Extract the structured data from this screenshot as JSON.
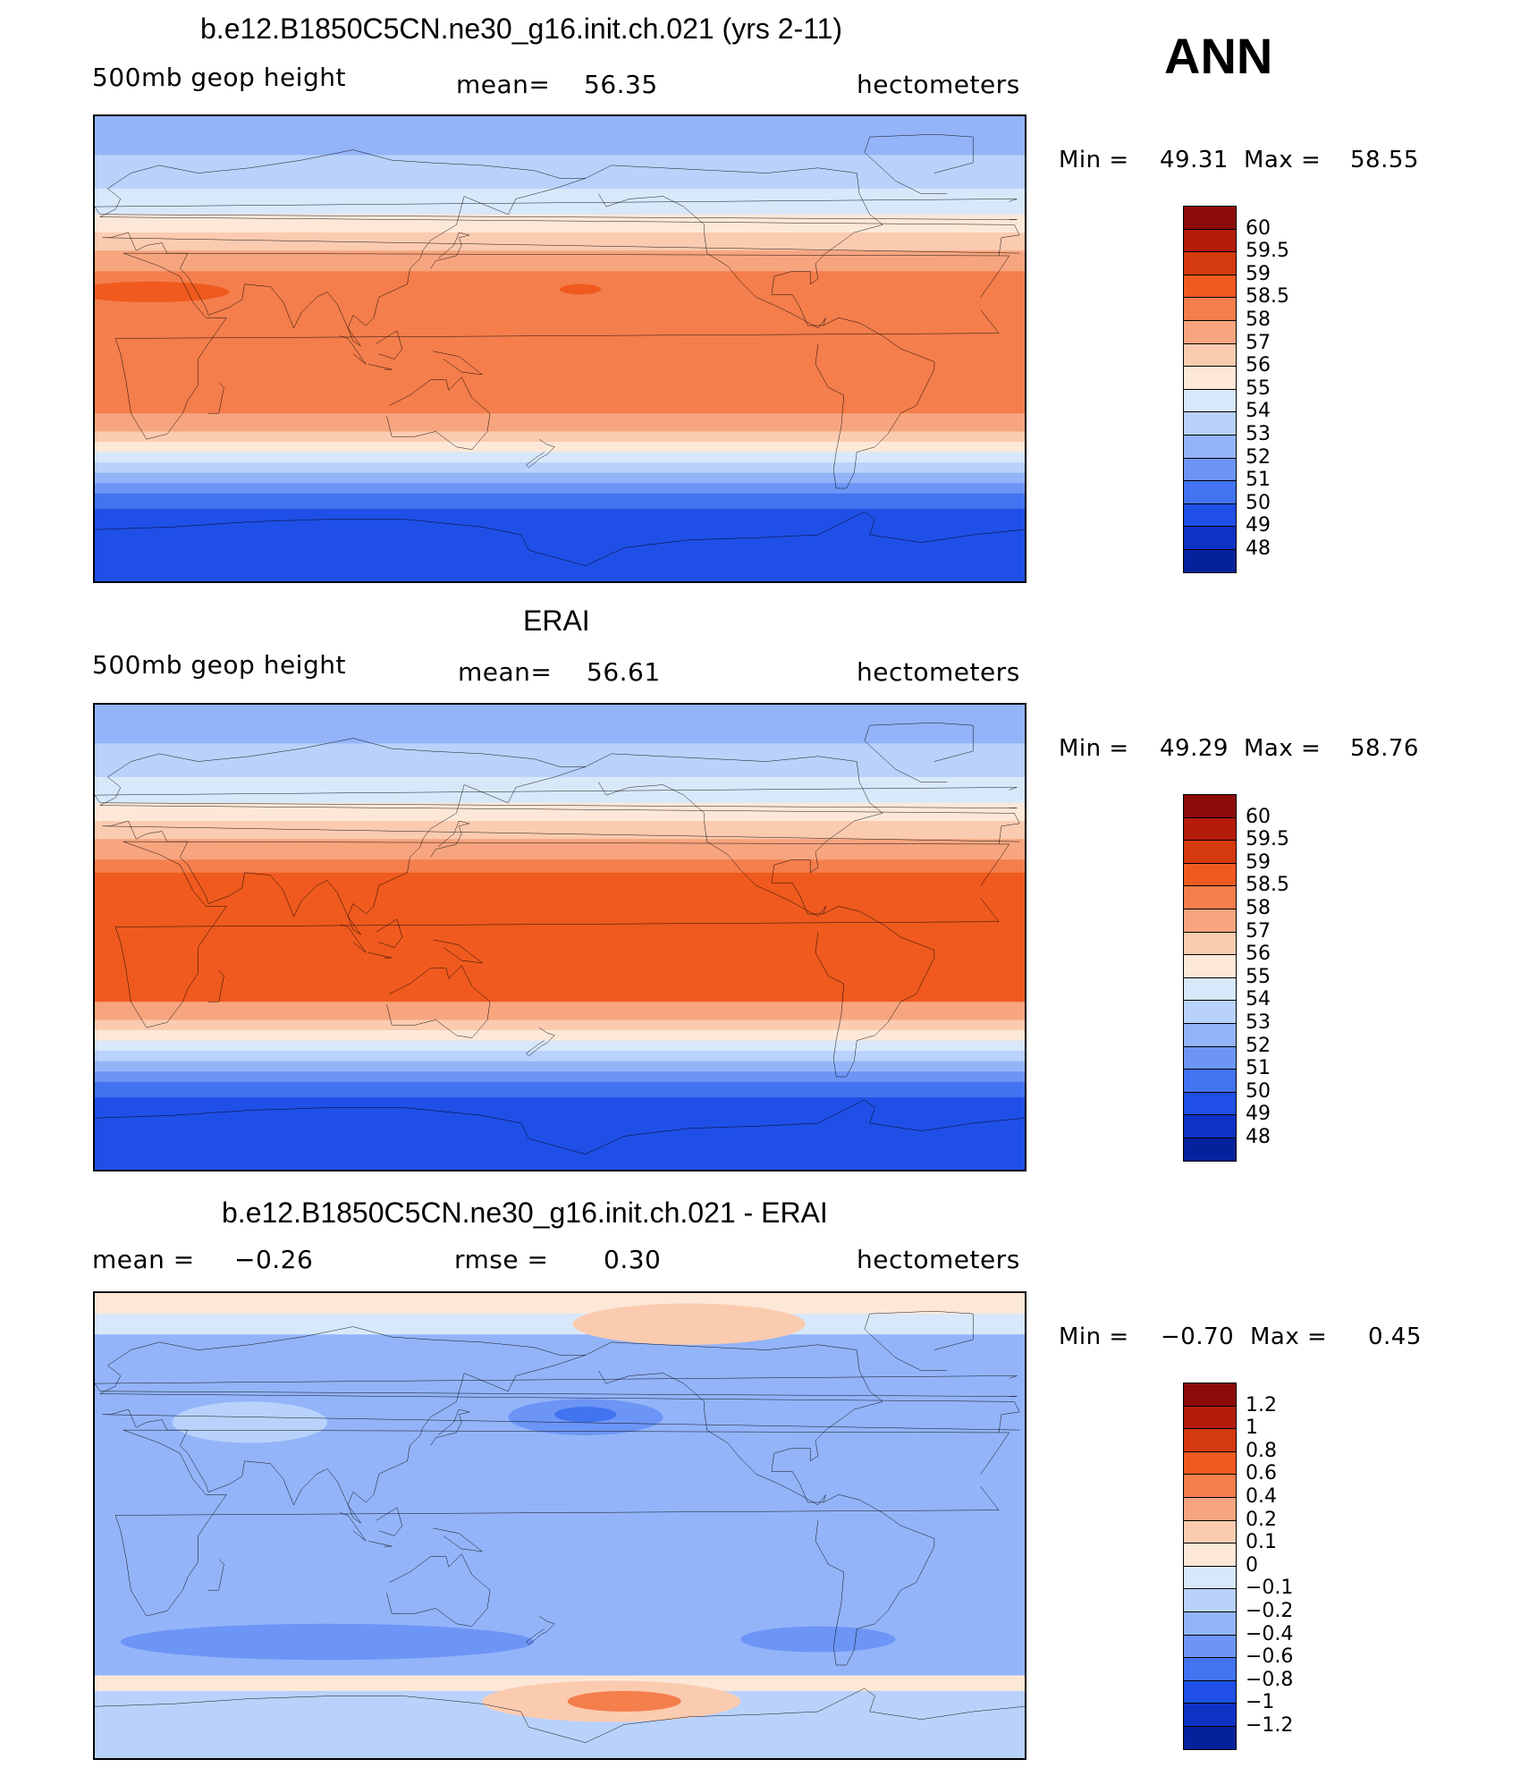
{
  "season": "ANN",
  "panels": [
    {
      "title": "b.e12.B1850C5CN.ne30_g16.init.ch.021 (yrs 2-11)",
      "left_label": "500mb geop height",
      "center_label": "mean=",
      "center_value": "56.35",
      "units": "hectometers",
      "min_label": "Min =",
      "min_value": "49.31",
      "max_label": "Max =",
      "max_value": "58.55",
      "colorbar": {
        "labels": [
          "60",
          "59.5",
          "59",
          "58.5",
          "58",
          "57",
          "56",
          "55",
          "54",
          "53",
          "52",
          "51",
          "50",
          "49",
          "48"
        ],
        "colors": [
          "#8c0a0a",
          "#b51c0b",
          "#d43a0e",
          "#f05a1e",
          "#f47e4c",
          "#f7a57f",
          "#fbcbb0",
          "#fde8d8",
          "#d8e8fb",
          "#b8d2fb",
          "#93b4f9",
          "#6d95f6",
          "#4273f0",
          "#1f4fe6",
          "#0e33c4",
          "#03229b"
        ]
      },
      "field": {
        "bands": [
          {
            "lat": [
              90,
              75
            ],
            "color": "#93b4f9"
          },
          {
            "lat": [
              75,
              62
            ],
            "color": "#b8d2fb"
          },
          {
            "lat": [
              62,
              52
            ],
            "color": "#d8e8fb"
          },
          {
            "lat": [
              52,
              45
            ],
            "color": "#fde8d8"
          },
          {
            "lat": [
              45,
              38
            ],
            "color": "#fbcbb0"
          },
          {
            "lat": [
              38,
              30
            ],
            "color": "#f7a57f"
          },
          {
            "lat": [
              30,
              -25
            ],
            "color": "#f47e4c"
          },
          {
            "lat": [
              -25,
              -32
            ],
            "color": "#f7a57f"
          },
          {
            "lat": [
              -32,
              -36
            ],
            "color": "#fbcbb0"
          },
          {
            "lat": [
              -36,
              -40
            ],
            "color": "#fde8d8"
          },
          {
            "lat": [
              -40,
              -44
            ],
            "color": "#d8e8fb"
          },
          {
            "lat": [
              -44,
              -48
            ],
            "color": "#b8d2fb"
          },
          {
            "lat": [
              -48,
              -52
            ],
            "color": "#93b4f9"
          },
          {
            "lat": [
              -52,
              -56
            ],
            "color": "#6d95f6"
          },
          {
            "lat": [
              -56,
              -62
            ],
            "color": "#4273f0"
          },
          {
            "lat": [
              -62,
              -90
            ],
            "color": "#1f4fe6"
          }
        ],
        "blobs": [
          {
            "lon": 22,
            "lat": 22,
            "rx": 30,
            "ry": 4,
            "color": "#f05a1e"
          },
          {
            "lon": 188,
            "lat": 23,
            "rx": 8,
            "ry": 2,
            "color": "#f05a1e"
          }
        ]
      }
    },
    {
      "title": "ERAI",
      "left_label": "500mb geop height",
      "center_label": "mean=",
      "center_value": "56.61",
      "units": "hectometers",
      "min_label": "Min =",
      "min_value": "49.29",
      "max_label": "Max =",
      "max_value": "58.76",
      "colorbar": {
        "labels": [
          "60",
          "59.5",
          "59",
          "58.5",
          "58",
          "57",
          "56",
          "55",
          "54",
          "53",
          "52",
          "51",
          "50",
          "49",
          "48"
        ],
        "colors": [
          "#8c0a0a",
          "#b51c0b",
          "#d43a0e",
          "#f05a1e",
          "#f47e4c",
          "#f7a57f",
          "#fbcbb0",
          "#fde8d8",
          "#d8e8fb",
          "#b8d2fb",
          "#93b4f9",
          "#6d95f6",
          "#4273f0",
          "#1f4fe6",
          "#0e33c4",
          "#03229b"
        ]
      },
      "field": {
        "bands": [
          {
            "lat": [
              90,
              75
            ],
            "color": "#93b4f9"
          },
          {
            "lat": [
              75,
              62
            ],
            "color": "#b8d2fb"
          },
          {
            "lat": [
              62,
              52
            ],
            "color": "#d8e8fb"
          },
          {
            "lat": [
              52,
              45
            ],
            "color": "#fde8d8"
          },
          {
            "lat": [
              45,
              38
            ],
            "color": "#fbcbb0"
          },
          {
            "lat": [
              38,
              30
            ],
            "color": "#f7a57f"
          },
          {
            "lat": [
              30,
              25
            ],
            "color": "#f47e4c"
          },
          {
            "lat": [
              25,
              -25
            ],
            "color": "#f05a1e"
          },
          {
            "lat": [
              -25,
              -32
            ],
            "color": "#f7a57f"
          },
          {
            "lat": [
              -32,
              -36
            ],
            "color": "#fbcbb0"
          },
          {
            "lat": [
              -36,
              -40
            ],
            "color": "#fde8d8"
          },
          {
            "lat": [
              -40,
              -44
            ],
            "color": "#d8e8fb"
          },
          {
            "lat": [
              -44,
              -48
            ],
            "color": "#b8d2fb"
          },
          {
            "lat": [
              -48,
              -52
            ],
            "color": "#93b4f9"
          },
          {
            "lat": [
              -52,
              -56
            ],
            "color": "#6d95f6"
          },
          {
            "lat": [
              -56,
              -62
            ],
            "color": "#4273f0"
          },
          {
            "lat": [
              -62,
              -90
            ],
            "color": "#1f4fe6"
          }
        ],
        "blobs": []
      }
    },
    {
      "title": "b.e12.B1850C5CN.ne30_g16.init.ch.021 - ERAI",
      "left_label": "mean =",
      "left_value": "−0.26",
      "center_label": "rmse =",
      "center_value": "0.30",
      "units": "hectometers",
      "min_label": "Min =",
      "min_value": "−0.70",
      "max_label": "Max =",
      "max_value": "0.45",
      "colorbar": {
        "labels": [
          "1.2",
          "1",
          "0.8",
          "0.6",
          "0.4",
          "0.2",
          "0.1",
          "0",
          "−0.1",
          "−0.2",
          "−0.4",
          "−0.6",
          "−0.8",
          "−1",
          "−1.2"
        ],
        "colors": [
          "#8c0a0a",
          "#b51c0b",
          "#d43a0e",
          "#f05a1e",
          "#f47e4c",
          "#f7a57f",
          "#fbcbb0",
          "#fde8d8",
          "#d8e8fb",
          "#b8d2fb",
          "#93b4f9",
          "#6d95f6",
          "#4273f0",
          "#1f4fe6",
          "#0e33c4",
          "#03229b"
        ]
      },
      "field": {
        "bands": [
          {
            "lat": [
              90,
              82
            ],
            "color": "#fde8d8"
          },
          {
            "lat": [
              82,
              74
            ],
            "color": "#d8e8fb"
          },
          {
            "lat": [
              74,
              -58
            ],
            "color": "#93b4f9"
          },
          {
            "lat": [
              -58,
              -64
            ],
            "color": "#fde8d8"
          },
          {
            "lat": [
              -64,
              -90
            ],
            "color": "#b8d2fb"
          }
        ],
        "blobs": [
          {
            "lon": 230,
            "lat": 78,
            "rx": 45,
            "ry": 8,
            "color": "#fbcbb0"
          },
          {
            "lon": 60,
            "lat": 40,
            "rx": 30,
            "ry": 8,
            "color": "#b8d2fb"
          },
          {
            "lon": 190,
            "lat": 42,
            "rx": 30,
            "ry": 7,
            "color": "#6d95f6"
          },
          {
            "lon": 190,
            "lat": 43,
            "rx": 12,
            "ry": 3,
            "color": "#4273f0"
          },
          {
            "lon": 90,
            "lat": -45,
            "rx": 80,
            "ry": 7,
            "color": "#6d95f6"
          },
          {
            "lon": 280,
            "lat": -44,
            "rx": 30,
            "ry": 5,
            "color": "#6d95f6"
          },
          {
            "lon": 200,
            "lat": -68,
            "rx": 50,
            "ry": 8,
            "color": "#fbcbb0"
          },
          {
            "lon": 205,
            "lat": -68,
            "rx": 22,
            "ry": 4,
            "color": "#f47e4c"
          }
        ]
      }
    }
  ]
}
